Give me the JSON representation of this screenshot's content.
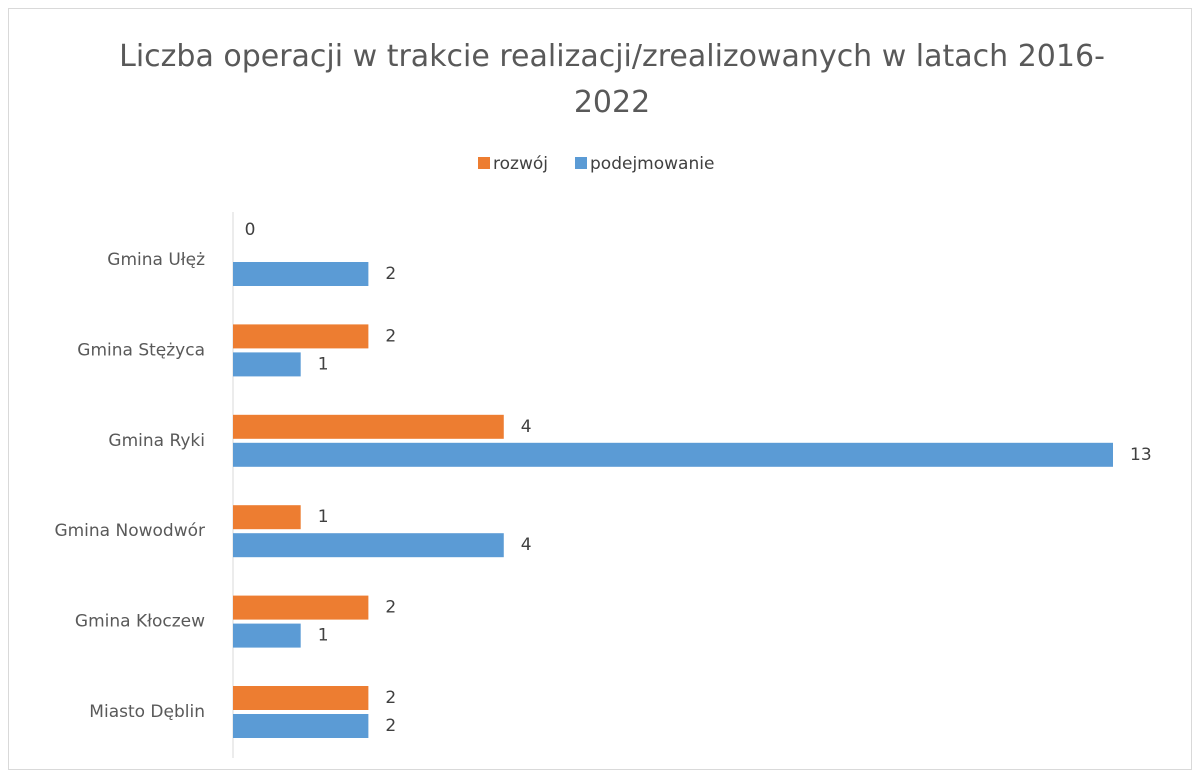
{
  "chart_data": {
    "type": "bar",
    "orientation": "horizontal",
    "title": "Liczba operacji w trakcie realizacji/zrealizowanych w latach 2016-2022",
    "categories": [
      "Gmina Ułęż",
      "Gmina Stężyca",
      "Gmina Ryki",
      "Gmina Nowodwór",
      "Gmina Kłoczew",
      "Miasto Dęblin"
    ],
    "series": [
      {
        "name": "rozwój",
        "color": "#ed7d31",
        "values": [
          0,
          2,
          4,
          1,
          2,
          2
        ]
      },
      {
        "name": "podejmowanie",
        "color": "#5b9bd5",
        "values": [
          2,
          1,
          13,
          4,
          1,
          2
        ]
      }
    ],
    "legend": "top"
  }
}
